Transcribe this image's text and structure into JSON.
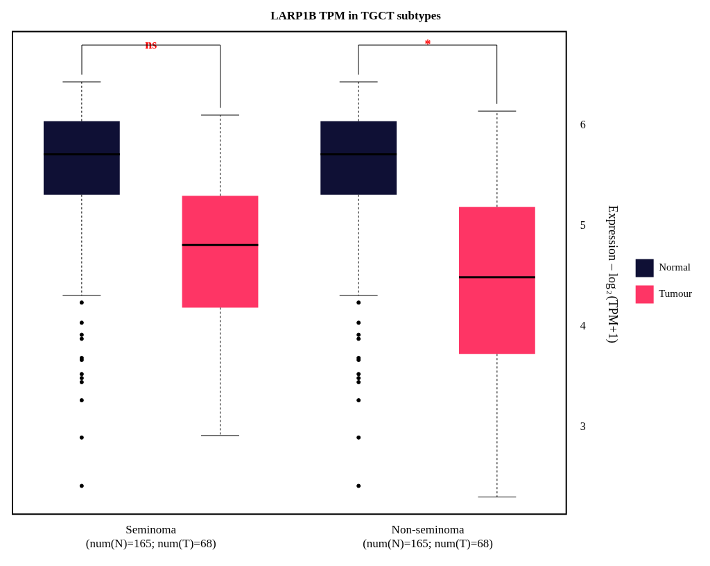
{
  "chart_data": {
    "type": "box",
    "title": "LARP1B TPM in TGCT subtypes",
    "ylabel": "Expression – log$_{2}$(TPM+1)",
    "categories": [
      "Seminoma\n(num(N)=165; num(T)=68)",
      "Non-seminoma\n(num(N)=165; num(T)=68)"
    ],
    "series": [
      {
        "name": "Normal",
        "color": "#0f1035",
        "boxes": [
          {
            "low": 4.31,
            "q1": 5.31,
            "median": 5.71,
            "q3": 6.04,
            "high": 6.43,
            "outliers": [
              4.24,
              4.04,
              3.92,
              3.88,
              3.69,
              3.67,
              3.53,
              3.49,
              3.45,
              3.27,
              2.9,
              2.42
            ]
          },
          {
            "low": 4.31,
            "q1": 5.31,
            "median": 5.71,
            "q3": 6.04,
            "high": 6.43,
            "outliers": [
              4.24,
              4.04,
              3.92,
              3.88,
              3.69,
              3.67,
              3.53,
              3.49,
              3.45,
              3.27,
              2.9,
              2.42
            ]
          }
        ]
      },
      {
        "name": "Tumour",
        "color": "#fe3565",
        "boxes": [
          {
            "low": 2.92,
            "q1": 4.19,
            "median": 4.81,
            "q3": 5.3,
            "high": 6.1
          },
          {
            "low": 2.31,
            "q1": 3.73,
            "median": 4.49,
            "q3": 5.19,
            "high": 6.14
          }
        ]
      }
    ],
    "annotations": [
      "ns",
      "*"
    ],
    "ylim": [
      2.14,
      6.93
    ],
    "yticks": [
      3,
      4,
      5,
      6
    ],
    "grid": false,
    "legend": "right"
  }
}
